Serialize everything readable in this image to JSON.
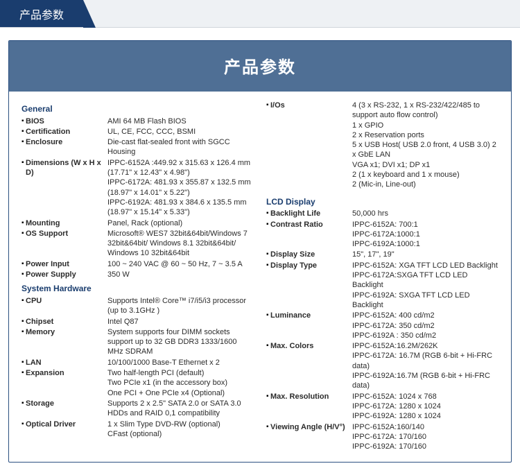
{
  "tab": {
    "label": "产品参数"
  },
  "panel": {
    "title": "产品参数"
  },
  "left": {
    "general": {
      "heading": "General",
      "items": [
        {
          "label": "BIOS",
          "value": "AMI 64 MB Flash BIOS"
        },
        {
          "label": "Certification",
          "value": "UL, CE, FCC, CCC, BSMI"
        },
        {
          "label": "Enclosure",
          "value": "Die-cast flat-sealed front with SGCC Housing"
        },
        {
          "label": "Dimensions (W x H x D)",
          "value": "IPPC-6152A :449.92 x 315.63 x 126.4 mm (17.71\" x 12.43\" x 4.98\")\nIPPC-6172A: 481.93 x 355.87 x 132.5 mm (18.97\" x 14.01\" x 5.22\")\nIPPC-6192A: 481.93 x 384.6 x 135.5 mm (18.97\" x 15.14\" x 5.33\")"
        },
        {
          "label": "Mounting",
          "value": "Panel, Rack (optional)"
        },
        {
          "label": "OS Support",
          "value": "Microsoft® WES7 32bit&64bit/Windows 7 32bit&64bit/ Windows 8.1 32bit&64bit/ Windows 10 32bit&64bit"
        },
        {
          "label": "Power Input",
          "value": "100 ~ 240 VAC @ 60 ~ 50 Hz, 7 ~ 3.5 A"
        },
        {
          "label": "Power Supply",
          "value": "350 W"
        }
      ]
    },
    "hardware": {
      "heading": "System Hardware",
      "items": [
        {
          "label": "CPU",
          "value": "Supports Intel® Core™ i7/i5/i3 processor (up to 3.1GHz )"
        },
        {
          "label": "Chipset",
          "value": "Intel Q87"
        },
        {
          "label": "Memory",
          "value": "System supports four DIMM sockets support up to 32 GB DDR3 1333/1600 MHz SDRAM"
        },
        {
          "label": "LAN",
          "value": "10/100/1000 Base-T Ethernet x 2"
        },
        {
          "label": "Expansion",
          "value": "Two half-length PCI (default)\nTwo PCIe x1 (in the accessory box)\nOne PCI + One PCIe x4 (Optional)"
        },
        {
          "label": "Storage",
          "value": "Supports 2 x 2.5\" SATA 2.0 or SATA 3.0 HDDs and RAID 0,1 compatibility"
        },
        {
          "label": "Optical Driver",
          "value": "1 x Slim Type DVD-RW (optional)\nCFast (optional)"
        }
      ]
    }
  },
  "right": {
    "ios": {
      "items": [
        {
          "label": "I/Os",
          "value": "4 (3 x RS-232, 1 x RS-232/422/485 to support auto flow control)\n1 x GPIO\n2 x Reservation ports\n5 x USB Host( USB 2.0 front, 4 USB 3.0) 2 x GbE LAN\nVGA x1; DVI x1; DP x1\n2 (1 x keyboard and 1 x mouse)\n2 (Mic-in, Line-out)"
        }
      ]
    },
    "lcd": {
      "heading": "LCD Display",
      "items": [
        {
          "label": "Backlight Life",
          "value": "50,000 hrs"
        },
        {
          "label": "Contrast Ratio",
          "value": "IPPC-6152A: 700:1\nIPPC-6172A:1000:1\nIPPC-6192A:1000:1"
        },
        {
          "label": "Display Size",
          "value": "15\", 17\", 19\""
        },
        {
          "label": "Display Type",
          "value": "IPPC-6152A: XGA TFT LCD LED Backlight\nIPPC-6172A:SXGA TFT LCD LED Backlight\nIPPC-6192A: SXGA TFT LCD LED Backlight"
        },
        {
          "label": "Luminance",
          "value": "IPPC-6152A: 400 cd/m2\nIPPC-6172A: 350 cd/m2\nIPPC-6192A : 350 cd/m2"
        },
        {
          "label": "Max. Colors",
          "value": "IPPC-6152A:16.2M/262K\nIPPC-6172A: 16.7M (RGB 6-bit + Hi-FRC data)\nIPPC-6192A:16.7M (RGB 6-bit + Hi-FRC data)"
        },
        {
          "label": "Max. Resolution",
          "value": "IPPC-6152A: 1024 x 768\nIPPC-6172A: 1280 x 1024\nIPPC-6192A: 1280 x 1024"
        },
        {
          "label": "Viewing Angle (H/V°)",
          "value": "IPPC-6152A:160/140\nIPPC-6172A: 170/160\nIPPC-6192A: 170/160"
        }
      ]
    }
  }
}
